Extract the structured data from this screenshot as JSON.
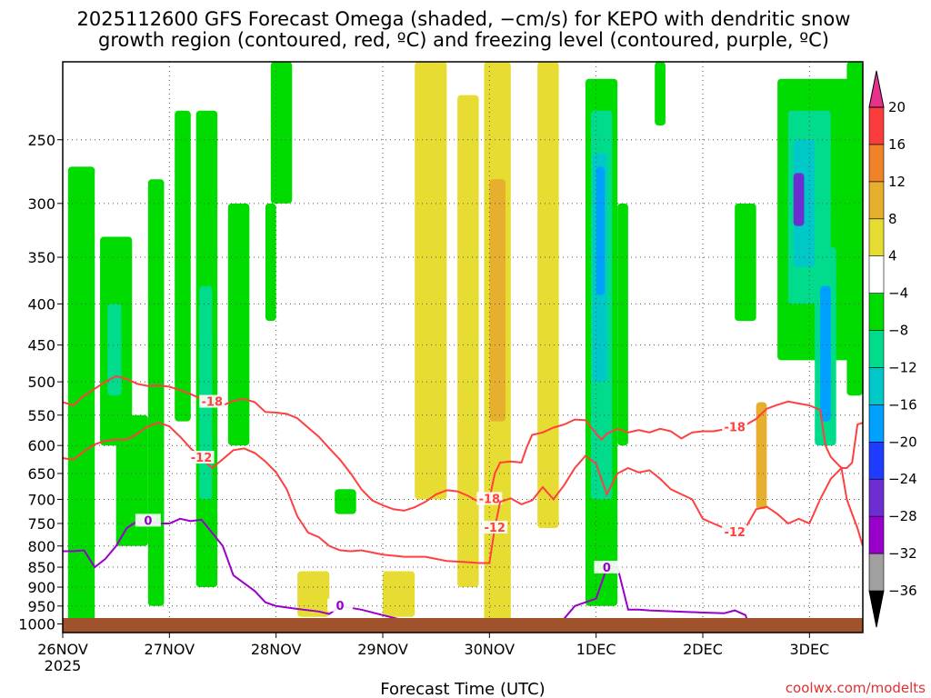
{
  "chart_data": {
    "type": "heatmap",
    "title": "2025112600 GFS Forecast Omega (shaded, −cm/s) for KEPO with dendritic snow",
    "subtitle": "growth region (contoured, red, ºC) and freezing level (contoured, purple, ºC)",
    "xlabel": "Forecast Time (UTC)",
    "ylabel": "",
    "credit": "coolwx.com/modelts",
    "x_ticks": [
      "26NOV",
      "27NOV",
      "28NOV",
      "29NOV",
      "30NOV",
      "1DEC",
      "2DEC",
      "3DEC"
    ],
    "x_year": "2025",
    "x_range_days": [
      0,
      7.5
    ],
    "y_scale": "log",
    "y_range_hpa": [
      1025,
      200
    ],
    "y_ticks": [
      250,
      300,
      350,
      400,
      450,
      500,
      550,
      600,
      650,
      700,
      750,
      800,
      850,
      900,
      950,
      1000
    ],
    "grid": true,
    "colorbar": {
      "levels": [
        -36,
        -32,
        -28,
        -24,
        -20,
        -16,
        -12,
        -8,
        -4,
        4,
        8,
        12,
        16,
        20
      ],
      "colors": [
        "#000000",
        "#a0a0a0",
        "#9900cc",
        "#6c2ed0",
        "#1e3cff",
        "#00a0ff",
        "#00c8c8",
        "#00dc8c",
        "#00dc00",
        "#ffffff",
        "#e6dc32",
        "#e6af2d",
        "#f08228",
        "#fa3c3c",
        "#e6328c"
      ]
    },
    "series": [
      {
        "name": "-18",
        "color": "#ff4040",
        "points": [
          [
            0,
            530
          ],
          [
            0.1,
            535
          ],
          [
            0.2,
            520
          ],
          [
            0.3,
            510
          ],
          [
            0.4,
            500
          ],
          [
            0.5,
            492
          ],
          [
            0.6,
            496
          ],
          [
            0.7,
            503
          ],
          [
            0.8,
            506
          ],
          [
            0.9,
            505
          ],
          [
            1.0,
            507
          ],
          [
            1.1,
            512
          ],
          [
            1.2,
            518
          ],
          [
            1.3,
            525
          ],
          [
            1.4,
            530
          ],
          [
            1.5,
            535
          ],
          [
            1.6,
            528
          ],
          [
            1.7,
            525
          ],
          [
            1.8,
            530
          ],
          [
            1.9,
            545
          ],
          [
            2.0,
            546
          ],
          [
            2.1,
            548
          ],
          [
            2.2,
            555
          ],
          [
            2.3,
            570
          ],
          [
            2.4,
            585
          ],
          [
            2.5,
            605
          ],
          [
            2.6,
            625
          ],
          [
            2.7,
            650
          ],
          [
            2.8,
            680
          ],
          [
            2.9,
            702
          ],
          [
            3.0,
            712
          ],
          [
            3.1,
            720
          ],
          [
            3.2,
            723
          ],
          [
            3.3,
            716
          ],
          [
            3.4,
            705
          ],
          [
            3.5,
            690
          ],
          [
            3.6,
            682
          ],
          [
            3.7,
            684
          ],
          [
            3.8,
            693
          ],
          [
            3.9,
            705
          ],
          [
            4.0,
            700
          ],
          [
            4.05,
            650
          ],
          [
            4.1,
            630
          ],
          [
            4.2,
            628
          ],
          [
            4.3,
            630
          ],
          [
            4.35,
            603
          ],
          [
            4.4,
            582
          ],
          [
            4.5,
            578
          ],
          [
            4.6,
            570
          ],
          [
            4.7,
            565
          ],
          [
            4.8,
            557
          ],
          [
            4.9,
            558
          ],
          [
            5.0,
            580
          ],
          [
            5.05,
            590
          ],
          [
            5.1,
            580
          ],
          [
            5.2,
            572
          ],
          [
            5.3,
            578
          ],
          [
            5.4,
            574
          ],
          [
            5.5,
            578
          ],
          [
            5.6,
            572
          ],
          [
            5.7,
            576
          ],
          [
            5.8,
            588
          ],
          [
            5.9,
            578
          ],
          [
            6.0,
            576
          ],
          [
            6.1,
            576
          ],
          [
            6.2,
            573
          ],
          [
            6.3,
            570
          ],
          [
            6.4,
            566
          ],
          [
            6.5,
            556
          ],
          [
            6.6,
            540
          ],
          [
            6.7,
            534
          ],
          [
            6.8,
            529
          ],
          [
            6.9,
            532
          ],
          [
            7.0,
            535
          ],
          [
            7.1,
            542
          ],
          [
            7.15,
            600
          ],
          [
            7.2,
            620
          ],
          [
            7.3,
            640
          ],
          [
            7.35,
            640
          ],
          [
            7.4,
            630
          ],
          [
            7.45,
            565
          ],
          [
            7.5,
            562
          ]
        ]
      },
      {
        "name": "-12",
        "color": "#ff4040",
        "points": [
          [
            0,
            622
          ],
          [
            0.1,
            625
          ],
          [
            0.2,
            610
          ],
          [
            0.3,
            598
          ],
          [
            0.4,
            592
          ],
          [
            0.5,
            590
          ],
          [
            0.6,
            590
          ],
          [
            0.7,
            580
          ],
          [
            0.8,
            568
          ],
          [
            0.9,
            562
          ],
          [
            1.0,
            568
          ],
          [
            1.1,
            585
          ],
          [
            1.2,
            605
          ],
          [
            1.3,
            622
          ],
          [
            1.4,
            640
          ],
          [
            1.5,
            624
          ],
          [
            1.6,
            608
          ],
          [
            1.7,
            605
          ],
          [
            1.8,
            613
          ],
          [
            1.9,
            628
          ],
          [
            2.0,
            648
          ],
          [
            2.1,
            680
          ],
          [
            2.2,
            735
          ],
          [
            2.3,
            770
          ],
          [
            2.4,
            780
          ],
          [
            2.5,
            800
          ],
          [
            2.6,
            810
          ],
          [
            2.7,
            812
          ],
          [
            2.8,
            810
          ],
          [
            2.9,
            815
          ],
          [
            3.0,
            820
          ],
          [
            3.2,
            825
          ],
          [
            3.4,
            825
          ],
          [
            3.6,
            835
          ],
          [
            3.8,
            838
          ],
          [
            3.9,
            840
          ],
          [
            4.0,
            840
          ],
          [
            4.05,
            760
          ],
          [
            4.1,
            705
          ],
          [
            4.2,
            698
          ],
          [
            4.3,
            710
          ],
          [
            4.4,
            702
          ],
          [
            4.5,
            676
          ],
          [
            4.6,
            700
          ],
          [
            4.7,
            672
          ],
          [
            4.8,
            640
          ],
          [
            4.9,
            618
          ],
          [
            5.0,
            632
          ],
          [
            5.1,
            690
          ],
          [
            5.2,
            650
          ],
          [
            5.3,
            640
          ],
          [
            5.4,
            648
          ],
          [
            5.5,
            644
          ],
          [
            5.6,
            660
          ],
          [
            5.7,
            680
          ],
          [
            5.8,
            690
          ],
          [
            5.9,
            700
          ],
          [
            6.0,
            740
          ],
          [
            6.1,
            750
          ],
          [
            6.2,
            760
          ],
          [
            6.3,
            770
          ],
          [
            6.4,
            760
          ],
          [
            6.5,
            720
          ],
          [
            6.6,
            715
          ],
          [
            6.7,
            730
          ],
          [
            6.8,
            750
          ],
          [
            6.9,
            740
          ],
          [
            7.0,
            750
          ],
          [
            7.1,
            700
          ],
          [
            7.2,
            660
          ],
          [
            7.3,
            640
          ],
          [
            7.35,
            700
          ],
          [
            7.4,
            730
          ],
          [
            7.45,
            760
          ],
          [
            7.5,
            800
          ]
        ]
      },
      {
        "name": "0",
        "color": "#9900cc",
        "points": [
          [
            0,
            812
          ],
          [
            0.1,
            812
          ],
          [
            0.2,
            810
          ],
          [
            0.3,
            850
          ],
          [
            0.4,
            830
          ],
          [
            0.5,
            800
          ],
          [
            0.6,
            760
          ],
          [
            0.7,
            745
          ],
          [
            0.75,
            752
          ],
          [
            0.8,
            745
          ],
          [
            0.9,
            750
          ],
          [
            1.0,
            750
          ],
          [
            1.1,
            740
          ],
          [
            1.2,
            745
          ],
          [
            1.3,
            742
          ],
          [
            1.4,
            770
          ],
          [
            1.5,
            800
          ],
          [
            1.6,
            870
          ],
          [
            1.7,
            890
          ],
          [
            1.8,
            910
          ],
          [
            1.9,
            940
          ],
          [
            2.0,
            950
          ],
          [
            2.2,
            958
          ],
          [
            2.4,
            965
          ],
          [
            2.5,
            972
          ],
          [
            2.6,
            950
          ],
          [
            2.7,
            955
          ],
          [
            2.8,
            960
          ],
          [
            3.0,
            975
          ],
          [
            3.2,
            990
          ],
          [
            3.4,
            1000
          ],
          [
            3.6,
            1010
          ],
          [
            3.8,
            1008
          ],
          [
            4.0,
            1013
          ],
          [
            4.2,
            1020
          ],
          [
            4.4,
            1020
          ],
          [
            4.6,
            1005
          ],
          [
            4.7,
            985
          ],
          [
            4.8,
            950
          ],
          [
            4.9,
            940
          ],
          [
            5.0,
            930
          ],
          [
            5.1,
            852
          ],
          [
            5.2,
            849
          ],
          [
            5.3,
            960
          ],
          [
            5.4,
            960
          ],
          [
            5.5,
            962
          ],
          [
            6.0,
            968
          ],
          [
            6.2,
            970
          ],
          [
            6.3,
            962
          ],
          [
            6.4,
            975
          ],
          [
            6.45,
            1018
          ],
          [
            6.6,
            1020
          ]
        ]
      }
    ],
    "omega_fill": [
      {
        "t": [
          0.05,
          0.3
        ],
        "p": [
          270,
          1000
        ],
        "c": 8
      },
      {
        "t": [
          0.1,
          0.3
        ],
        "p": [
          350,
          500
        ],
        "c": 8
      },
      {
        "t": [
          0.35,
          0.65
        ],
        "p": [
          330,
          600
        ],
        "c": 8
      },
      {
        "t": [
          0.42,
          0.55
        ],
        "p": [
          400,
          520
        ],
        "c": 7
      },
      {
        "t": [
          0.5,
          0.8
        ],
        "p": [
          550,
          800
        ],
        "c": 8
      },
      {
        "t": [
          0.8,
          0.95
        ],
        "p": [
          280,
          950
        ],
        "c": 8
      },
      {
        "t": [
          1.05,
          1.2
        ],
        "p": [
          230,
          560
        ],
        "c": 8
      },
      {
        "t": [
          1.25,
          1.45
        ],
        "p": [
          230,
          900
        ],
        "c": 8
      },
      {
        "t": [
          1.28,
          1.4
        ],
        "p": [
          380,
          700
        ],
        "c": 7
      },
      {
        "t": [
          1.55,
          1.75
        ],
        "p": [
          300,
          600
        ],
        "c": 8
      },
      {
        "t": [
          1.9,
          2.0
        ],
        "p": [
          300,
          420
        ],
        "c": 8
      },
      {
        "t": [
          1.95,
          2.15
        ],
        "p": [
          200,
          300
        ],
        "c": 8
      },
      {
        "t": [
          2.55,
          2.75
        ],
        "p": [
          680,
          730
        ],
        "c": 8
      },
      {
        "t": [
          4.9,
          5.2
        ],
        "p": [
          210,
          950
        ],
        "c": 8
      },
      {
        "t": [
          4.95,
          5.15
        ],
        "p": [
          230,
          700
        ],
        "c": 7
      },
      {
        "t": [
          4.97,
          5.1
        ],
        "p": [
          260,
          500
        ],
        "c": 6
      },
      {
        "t": [
          5.0,
          5.08
        ],
        "p": [
          270,
          390
        ],
        "c": 5
      },
      {
        "t": [
          5.2,
          5.3
        ],
        "p": [
          300,
          600
        ],
        "c": 8
      },
      {
        "t": [
          5.55,
          5.65
        ],
        "p": [
          200,
          240
        ],
        "c": 8
      },
      {
        "t": [
          6.3,
          6.5
        ],
        "p": [
          300,
          420
        ],
        "c": 8
      },
      {
        "t": [
          6.7,
          7.4
        ],
        "p": [
          210,
          470
        ],
        "c": 8
      },
      {
        "t": [
          6.8,
          7.2
        ],
        "p": [
          230,
          400
        ],
        "c": 7
      },
      {
        "t": [
          6.85,
          7.05
        ],
        "p": [
          250,
          360
        ],
        "c": 6
      },
      {
        "t": [
          6.85,
          6.95
        ],
        "p": [
          275,
          320
        ],
        "c": 3
      },
      {
        "t": [
          7.05,
          7.25
        ],
        "p": [
          340,
          600
        ],
        "c": 7
      },
      {
        "t": [
          7.1,
          7.2
        ],
        "p": [
          380,
          560
        ],
        "c": 5
      },
      {
        "t": [
          7.35,
          7.5
        ],
        "p": [
          200,
          520
        ],
        "c": 8
      },
      {
        "t": [
          0.0,
          0.2
        ],
        "p": [
          180,
          250
        ],
        "c": 9
      },
      {
        "t": [
          3.3,
          3.6
        ],
        "p": [
          200,
          700
        ],
        "c": 10
      },
      {
        "t": [
          3.7,
          3.9
        ],
        "p": [
          220,
          900
        ],
        "c": 10
      },
      {
        "t": [
          3.95,
          4.2
        ],
        "p": [
          200,
          1000
        ],
        "c": 10
      },
      {
        "t": [
          4.0,
          4.15
        ],
        "p": [
          280,
          560
        ],
        "c": 11
      },
      {
        "t": [
          4.45,
          4.65
        ],
        "p": [
          200,
          760
        ],
        "c": 10
      },
      {
        "t": [
          2.2,
          2.5
        ],
        "p": [
          860,
          980
        ],
        "c": 10
      },
      {
        "t": [
          3.0,
          3.3
        ],
        "p": [
          860,
          980
        ],
        "c": 10
      },
      {
        "t": [
          6.5,
          6.6
        ],
        "p": [
          530,
          720
        ],
        "c": 11
      }
    ]
  }
}
